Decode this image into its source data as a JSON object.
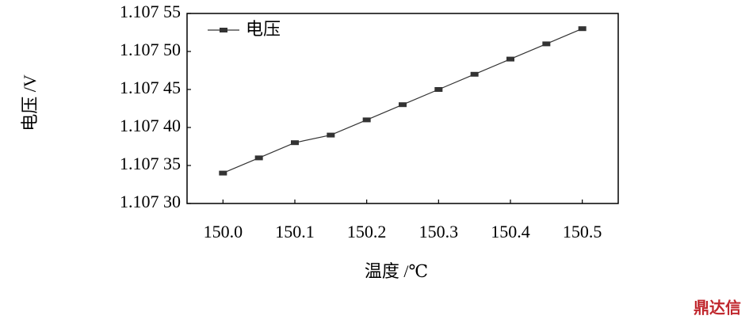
{
  "chart_data": {
    "type": "line",
    "x_label": "温度 /℃",
    "y_label": "电压 /V",
    "x": [
      150.0,
      150.05,
      150.1,
      150.15,
      150.2,
      150.25,
      150.3,
      150.35,
      150.4,
      150.45,
      150.5
    ],
    "series": [
      {
        "name": "电压",
        "color": "#333333",
        "values": [
          1.10734,
          1.10736,
          1.10738,
          1.10739,
          1.10741,
          1.10743,
          1.10745,
          1.10747,
          1.10749,
          1.10751,
          1.10753
        ]
      }
    ],
    "xlim": [
      149.95,
      150.55
    ],
    "xticks": [
      {
        "value": 150,
        "label": "150.0"
      },
      150.1,
      150.2,
      150.3,
      150.4,
      150.5
    ],
    "ylim": [
      1.1073,
      1.10755
    ],
    "yticks": [
      {
        "value": 1.1073,
        "label": "1.107 30"
      },
      {
        "value": 1.10735,
        "label": "1.107 35"
      },
      {
        "value": 1.1074,
        "label": "1.107 40"
      },
      {
        "value": 1.10745,
        "label": "1.107 45"
      },
      {
        "value": 1.1075,
        "label": "1.107 50"
      },
      {
        "value": 1.10755,
        "label": "1.107 55"
      }
    ],
    "legend": "top-left",
    "watermark": "鼎达信"
  }
}
